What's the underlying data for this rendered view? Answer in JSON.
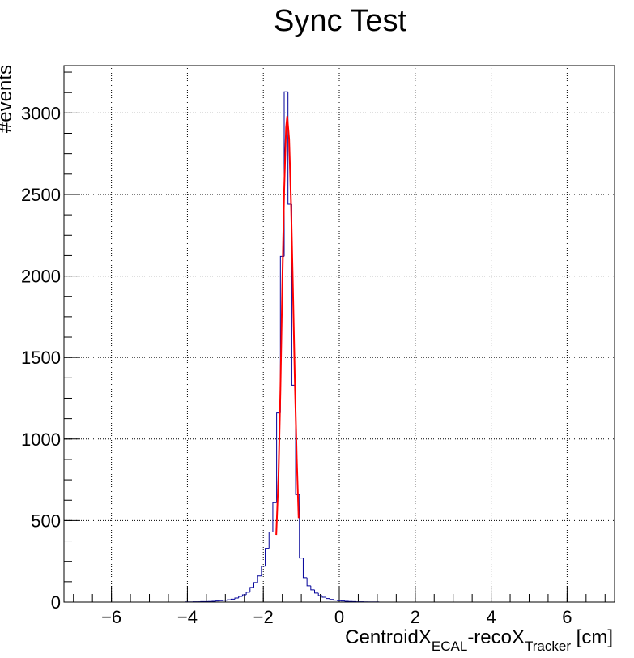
{
  "chart_data": {
    "type": "histogram",
    "title": "Sync Test",
    "y_label": "#events",
    "x_label": [
      "CentroidX",
      "ECAL",
      "-recoX",
      "Tracker",
      " [cm]"
    ],
    "bins": [
      -4.05,
      -3.95,
      -3.85,
      -3.75,
      -3.65,
      -3.55,
      -3.45,
      -3.35,
      -3.25,
      -3.15,
      -3.05,
      -2.95,
      -2.85,
      -2.75,
      -2.65,
      -2.55,
      -2.45,
      -2.35,
      -2.25,
      -2.15,
      -2.05,
      -1.95,
      -1.85,
      -1.75,
      -1.65,
      -1.55,
      -1.45,
      -1.35,
      -1.25,
      -1.15,
      -1.05,
      -0.95,
      -0.85,
      -0.75,
      -0.65,
      -0.55,
      -0.45,
      -0.35,
      -0.25,
      -0.15,
      -0.05,
      0.05,
      0.15,
      0.25,
      0.35,
      0.45,
      0.55,
      0.65,
      0.75,
      0.85,
      0.95,
      1.05,
      1.15,
      1.25,
      1.35,
      1.45,
      1.55
    ],
    "values": [
      1,
      1,
      2,
      2,
      3,
      3,
      4,
      5,
      7,
      9,
      11,
      14,
      18,
      25,
      35,
      45,
      60,
      90,
      120,
      160,
      220,
      330,
      430,
      610,
      1160,
      2120,
      3130,
      2440,
      1330,
      660,
      270,
      150,
      100,
      75,
      55,
      40,
      30,
      22,
      16,
      12,
      9,
      7,
      5,
      4,
      3,
      2,
      2,
      1,
      1,
      1,
      1,
      0,
      0,
      0,
      0,
      0
    ],
    "color": "#000099",
    "fit": {
      "color": "#ff0000",
      "x": [
        -1.66,
        -1.6,
        -1.55,
        -1.5,
        -1.45,
        -1.4,
        -1.37,
        -1.32,
        -1.27,
        -1.22,
        -1.17,
        -1.12,
        -1.07
      ],
      "values": [
        412,
        772,
        1300,
        1940,
        2530,
        2910,
        2980,
        2840,
        2450,
        1920,
        1360,
        880,
        515
      ]
    },
    "xlim": [
      -7.25,
      7.25
    ],
    "ylim": [
      0,
      3290
    ],
    "xticks": [
      {
        "value": -6,
        "label": "−6"
      },
      {
        "value": -4,
        "label": "−4"
      },
      {
        "value": -2,
        "label": "−2"
      },
      0,
      2,
      4,
      6
    ],
    "yticks": [
      0,
      500,
      1000,
      1500,
      2000,
      2500,
      3000
    ],
    "grid": true
  }
}
